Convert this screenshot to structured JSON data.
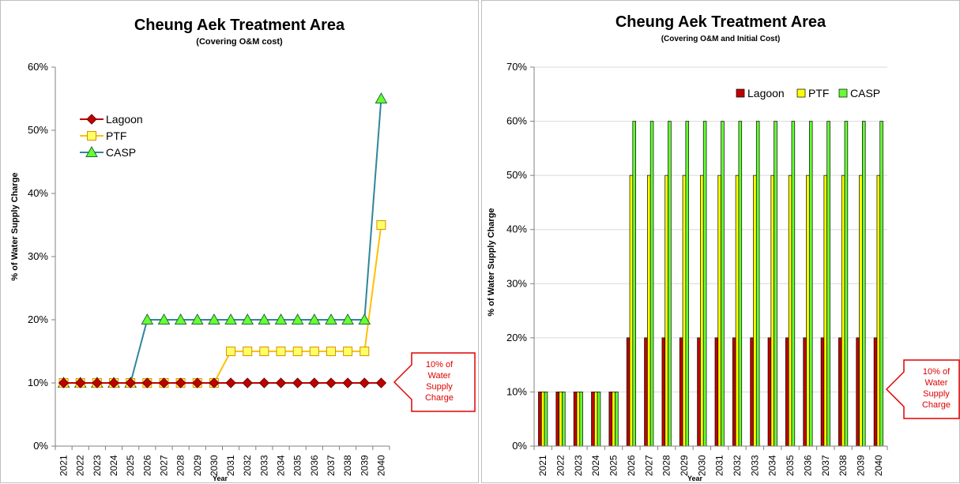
{
  "chart_data": [
    {
      "type": "line",
      "title": "Cheung Aek Treatment Area",
      "subtitle": "(Covering O&M cost)",
      "xlabel": "Year",
      "ylabel": "% of Water Supply Charge",
      "categories": [
        "2021",
        "2022",
        "2023",
        "2024",
        "2025",
        "2026",
        "2027",
        "2028",
        "2029",
        "2030",
        "2031",
        "2032",
        "2033",
        "2034",
        "2035",
        "2036",
        "2037",
        "2038",
        "2039",
        "2040"
      ],
      "ylim": [
        0,
        60
      ],
      "yticks": [
        "0%",
        "10%",
        "20%",
        "30%",
        "40%",
        "50%",
        "60%"
      ],
      "series": [
        {
          "name": "Lagoon",
          "marker": "diamond",
          "color": "#c00000",
          "values": [
            10,
            10,
            10,
            10,
            10,
            10,
            10,
            10,
            10,
            10,
            10,
            10,
            10,
            10,
            10,
            10,
            10,
            10,
            10,
            10
          ]
        },
        {
          "name": "PTF",
          "marker": "square",
          "color": "#ffc000",
          "values": [
            10,
            10,
            10,
            10,
            10,
            10,
            10,
            10,
            10,
            10,
            15,
            15,
            15,
            15,
            15,
            15,
            15,
            15,
            15,
            35
          ]
        },
        {
          "name": "CASP",
          "marker": "triangle",
          "color": "#31859c",
          "values": [
            10,
            10,
            10,
            10,
            10,
            20,
            20,
            20,
            20,
            20,
            20,
            20,
            20,
            20,
            20,
            20,
            20,
            20,
            20,
            55
          ]
        }
      ],
      "legend_position": "upper-left",
      "grid": false
    },
    {
      "type": "bar",
      "title": "Cheung Aek Treatment Area",
      "subtitle": "(Covering O&M and Initial Cost)",
      "xlabel": "Year",
      "ylabel": "% of Water Supply Charge",
      "categories": [
        "2021",
        "2022",
        "2023",
        "2024",
        "2025",
        "2026",
        "2027",
        "2028",
        "2029",
        "2030",
        "2031",
        "2032",
        "2033",
        "2034",
        "2035",
        "2036",
        "2037",
        "2038",
        "2039",
        "2040"
      ],
      "ylim": [
        0,
        70
      ],
      "yticks": [
        "0%",
        "10%",
        "20%",
        "30%",
        "40%",
        "50%",
        "60%",
        "70%"
      ],
      "series": [
        {
          "name": "Lagoon",
          "color": "#c00000",
          "values": [
            10,
            10,
            10,
            10,
            10,
            20,
            20,
            20,
            20,
            20,
            20,
            20,
            20,
            20,
            20,
            20,
            20,
            20,
            20,
            20
          ]
        },
        {
          "name": "PTF",
          "color": "#ffff00",
          "values": [
            10,
            10,
            10,
            10,
            10,
            50,
            50,
            50,
            50,
            50,
            50,
            50,
            50,
            50,
            50,
            50,
            50,
            50,
            50,
            50
          ]
        },
        {
          "name": "CASP",
          "color": "#66ff33",
          "values": [
            10,
            10,
            10,
            10,
            10,
            60,
            60,
            60,
            60,
            60,
            60,
            60,
            60,
            60,
            60,
            60,
            60,
            60,
            60,
            60
          ]
        }
      ],
      "legend_position": "top-right",
      "grid": true
    }
  ],
  "annotations": {
    "left_callout": [
      "10% of",
      "Water",
      "Supply",
      "Charge"
    ],
    "right_callout": [
      "10% of",
      "Water",
      "Supply",
      "Charge"
    ],
    "callout_color": "#e00000"
  }
}
